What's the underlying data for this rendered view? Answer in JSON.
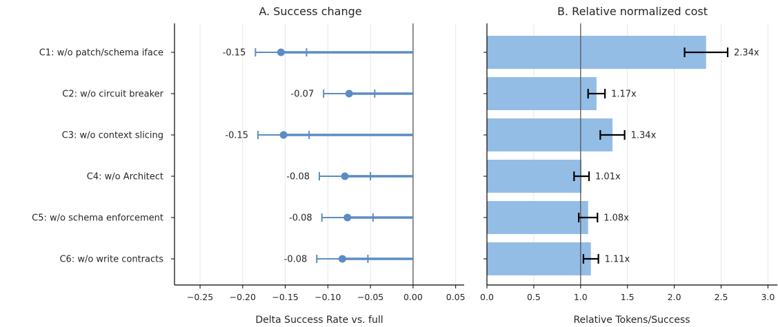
{
  "chart_data": [
    {
      "type": "scatter",
      "title": "A. Success change",
      "xlabel": "Delta Success Rate vs. full",
      "ylabel": "",
      "xlim": [
        -0.28,
        0.06
      ],
      "xticks": [
        -0.25,
        -0.2,
        -0.15,
        -0.1,
        -0.05,
        0.0,
        0.05
      ],
      "xtick_labels": [
        "−0.25",
        "−0.20",
        "−0.15",
        "−0.10",
        "−0.05",
        "0.00",
        "0.05"
      ],
      "reference_line": 0.0,
      "grid": "x",
      "categories": [
        "C1: w/o patch/schema iface",
        "C2: w/o circuit breaker",
        "C3: w/o context slicing",
        "C4: w/o Architect",
        "C5: w/o schema enforcement",
        "C6: w/o write contracts"
      ],
      "values": [
        -0.155,
        -0.075,
        -0.152,
        -0.08,
        -0.077,
        -0.083
      ],
      "ci_low": [
        -0.185,
        -0.105,
        -0.182,
        -0.11,
        -0.107,
        -0.113
      ],
      "ci_high": [
        -0.125,
        -0.045,
        -0.122,
        -0.05,
        -0.047,
        -0.053
      ],
      "data_labels": [
        "-0.15",
        "-0.07",
        "-0.15",
        "-0.08",
        "-0.08",
        "-0.08"
      ],
      "color": "#5b8cc4"
    },
    {
      "type": "bar",
      "orientation": "horizontal",
      "title": "B. Relative normalized cost",
      "xlabel": "Relative Tokens/Success",
      "ylabel": "",
      "xlim": [
        0.0,
        3.1
      ],
      "xticks": [
        0.0,
        0.5,
        1.0,
        1.5,
        2.0,
        2.5,
        3.0
      ],
      "xtick_labels": [
        "0.0",
        "0.5",
        "1.0",
        "1.5",
        "2.0",
        "2.5",
        "3.0"
      ],
      "reference_line": 1.0,
      "grid": "x",
      "categories": [
        "C1: w/o patch/schema iface",
        "C2: w/o circuit breaker",
        "C3: w/o context slicing",
        "C4: w/o Architect",
        "C5: w/o schema enforcement",
        "C6: w/o write contracts"
      ],
      "values": [
        2.34,
        1.17,
        1.34,
        1.01,
        1.08,
        1.11
      ],
      "err_low": [
        2.11,
        1.08,
        1.21,
        0.93,
        0.98,
        1.03
      ],
      "err_high": [
        2.57,
        1.26,
        1.47,
        1.09,
        1.18,
        1.19
      ],
      "data_labels": [
        "2.34x",
        "1.17x",
        "1.34x",
        "1.01x",
        "1.08x",
        "1.11x"
      ],
      "color": "#94bde6"
    }
  ]
}
